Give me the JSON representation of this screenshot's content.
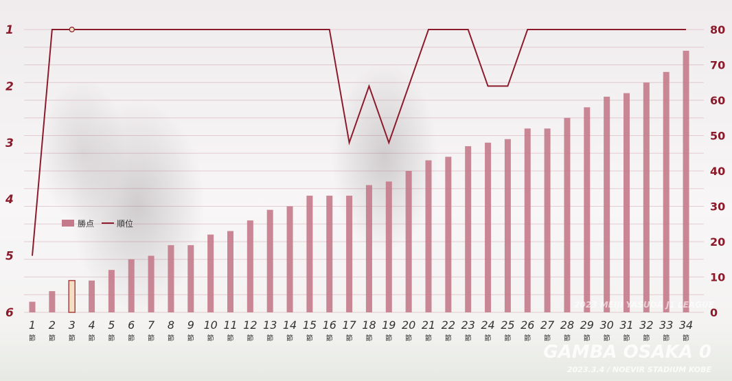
{
  "chart_data": {
    "type": "bar+line",
    "categories": [
      "1",
      "2",
      "3",
      "4",
      "5",
      "6",
      "7",
      "8",
      "9",
      "10",
      "11",
      "12",
      "13",
      "14",
      "15",
      "16",
      "17",
      "18",
      "19",
      "20",
      "21",
      "22",
      "23",
      "24",
      "25",
      "26",
      "27",
      "28",
      "29",
      "30",
      "31",
      "32",
      "33",
      "34"
    ],
    "category_unit": "節",
    "series": [
      {
        "name": "勝点",
        "type": "bar",
        "axis": "right",
        "color": "#c47a8a",
        "values": [
          3,
          6,
          9,
          9,
          12,
          15,
          16,
          19,
          19,
          22,
          23,
          26,
          29,
          30,
          33,
          33,
          33,
          36,
          37,
          40,
          43,
          44,
          47,
          48,
          49,
          52,
          52,
          55,
          58,
          61,
          62,
          65,
          68,
          74
        ]
      },
      {
        "name": "順位",
        "type": "line",
        "axis": "left",
        "color": "#8b1a2b",
        "values": [
          5,
          1,
          1,
          1,
          1,
          1,
          1,
          1,
          1,
          1,
          1,
          1,
          1,
          1,
          1,
          1,
          3,
          2,
          3,
          2,
          1,
          1,
          1,
          2,
          2,
          1,
          1,
          1,
          1,
          1,
          1,
          1,
          1,
          1
        ]
      }
    ],
    "y_left": {
      "ticks": [
        1,
        2,
        3,
        4,
        5,
        6
      ],
      "range": [
        1,
        6
      ],
      "inverted": true
    },
    "y_right": {
      "ticks": [
        0,
        10,
        20,
        30,
        40,
        50,
        60,
        70,
        80
      ],
      "range": [
        0,
        80
      ]
    },
    "highlight_index": 2,
    "highlight_color": "#f3dfc4",
    "highlight_border": "#a9403f",
    "grid": true,
    "legend_position": "middle-left"
  },
  "watermark": {
    "competition": "2023 MEIJI YASUDA J1 LEAGUE",
    "match": "GAMBA OSAKA 0",
    "date_venue": "2023.3.4 / NOEVIR STADIUM KOBE"
  }
}
